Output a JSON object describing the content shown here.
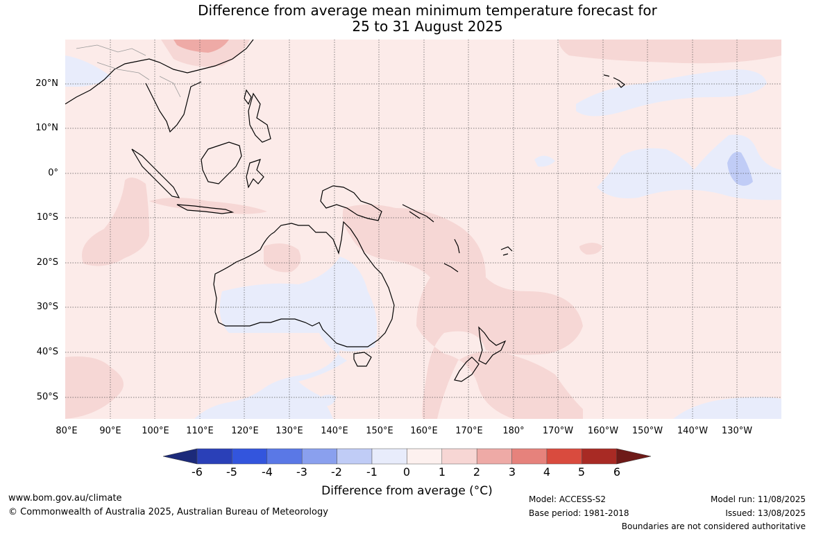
{
  "title_line1": "Difference from average mean minimum temperature forecast for",
  "title_line2": "25 to 31 August 2025",
  "lat_labels": [
    "20°N",
    "10°N",
    "0°",
    "10°S",
    "20°S",
    "30°S",
    "40°S",
    "50°S"
  ],
  "lon_labels": [
    "80°E",
    "90°E",
    "100°E",
    "110°E",
    "120°E",
    "130°E",
    "140°E",
    "150°E",
    "160°E",
    "170°E",
    "180°",
    "170°W",
    "160°W",
    "150°W",
    "140°W",
    "130°W"
  ],
  "colorbar": {
    "ticks": [
      "-6",
      "-5",
      "-4",
      "-3",
      "-2",
      "-1",
      "0",
      "1",
      "2",
      "3",
      "4",
      "5",
      "6"
    ],
    "colors": [
      "#1c2a7a",
      "#2a40b8",
      "#3355dd",
      "#5a78e6",
      "#8aa0ee",
      "#c0ccf6",
      "#e8ecfb",
      "#fdf1ef",
      "#f7d6d4",
      "#eeaaa6",
      "#e6827c",
      "#d94b3e",
      "#a82a24",
      "#6e1a18"
    ],
    "label": "Difference from average (°C)"
  },
  "colors": {
    "ocean_base": "#fcebe9",
    "warm_patch": "#f6d7d5",
    "cool_patch": "#e8ecfb",
    "cooler_patch": "#c0ccf6",
    "warmer_patch": "#eeaaa6"
  },
  "footer": {
    "website": "www.bom.gov.au/climate",
    "copyright": "© Commonwealth of Australia 2025, Australian Bureau of Meteorology",
    "model": "Model: ACCESS-S2",
    "base_period": "Base period: 1981-2018",
    "model_run": "Model run: 11/08/2025",
    "issued": "Issued: 13/08/2025",
    "boundaries": "Boundaries are not considered authoritative"
  }
}
